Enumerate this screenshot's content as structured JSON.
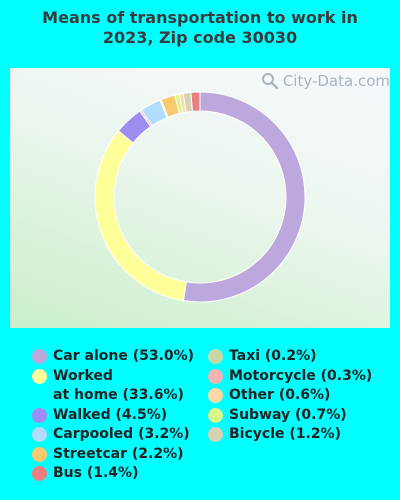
{
  "title_line1": "Means of transportation to work in",
  "title_line2": "2023, Zip code 30030",
  "watermark": "City-Data.com",
  "chart_data": {
    "type": "pie",
    "donut": true,
    "title": "Means of transportation to work in 2023, Zip code 30030",
    "series": [
      {
        "name": "Car alone",
        "value": 53.0,
        "color": "#bca8dd",
        "legend": "Car alone (53.0%)"
      },
      {
        "name": "Worked at home",
        "value": 33.6,
        "color": "#ffff99",
        "legend": "Worked at home (33.6%)"
      },
      {
        "name": "Walked",
        "value": 4.5,
        "color": "#9c8ef0",
        "legend": "Walked (4.5%)"
      },
      {
        "name": "Carpooled",
        "value": 3.2,
        "color": "#b2dcfb",
        "legend": "Carpooled (3.2%)"
      },
      {
        "name": "Streetcar",
        "value": 2.2,
        "color": "#f9c96e",
        "legend": "Streetcar (2.2%)"
      },
      {
        "name": "Bus",
        "value": 1.4,
        "color": "#e88080",
        "legend": "Bus (1.4%)"
      },
      {
        "name": "Taxi",
        "value": 0.2,
        "color": "#c8d7a8",
        "legend": "Taxi (0.2%)"
      },
      {
        "name": "Motorcycle",
        "value": 0.3,
        "color": "#f1b3b3",
        "legend": "Motorcycle (0.3%)"
      },
      {
        "name": "Other",
        "value": 0.6,
        "color": "#ffd8a8",
        "legend": "Other (0.6%)"
      },
      {
        "name": "Subway",
        "value": 0.7,
        "color": "#d8f88a",
        "legend": "Subway (0.7%)"
      },
      {
        "name": "Bicycle",
        "value": 1.2,
        "color": "#d6d2b4",
        "legend": "Bicycle (1.2%)"
      }
    ],
    "ring_order": [
      "Car alone",
      "Worked at home",
      "Walked",
      "Motorcycle",
      "Carpooled",
      "Taxi",
      "Streetcar",
      "Subway",
      "Other",
      "Bicycle",
      "Bus"
    ],
    "legend_columns": [
      [
        "Car alone",
        "Worked at home",
        "Walked",
        "Carpooled",
        "Streetcar",
        "Bus"
      ],
      [
        "Taxi",
        "Motorcycle",
        "Other",
        "Subway",
        "Bicycle"
      ]
    ],
    "legend_wrap": {
      "Worked at home": [
        "Worked",
        "at home (33.6%)"
      ]
    }
  }
}
